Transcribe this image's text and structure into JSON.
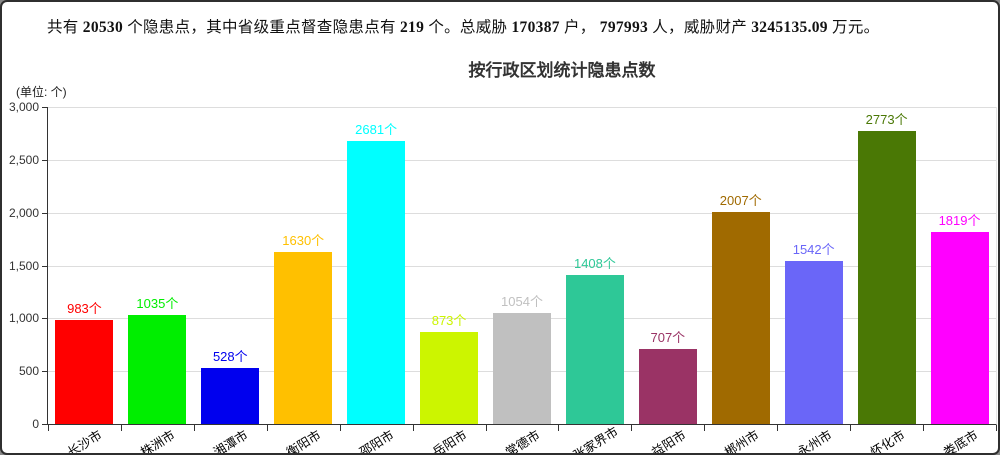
{
  "summary": {
    "segments": [
      {
        "t": "共有 ",
        "b": false
      },
      {
        "t": "20530",
        "b": true
      },
      {
        "t": " 个隐患点，其中省级重点督查隐患点有 ",
        "b": false
      },
      {
        "t": "219",
        "b": true
      },
      {
        "t": " 个。总威胁 ",
        "b": false
      },
      {
        "t": "170387",
        "b": true
      },
      {
        "t": " 户，  ",
        "b": false
      },
      {
        "t": "797993",
        "b": true
      },
      {
        "t": " 人，威胁财产 ",
        "b": false
      },
      {
        "t": "3245135.09",
        "b": true
      },
      {
        "t": " 万元。",
        "b": false
      }
    ]
  },
  "chart_data": {
    "type": "bar",
    "title": "按行政区划统计隐患点数",
    "unit_label": "(单位: 个)",
    "xlabel": "",
    "ylabel": "",
    "categories": [
      "长沙市",
      "株洲市",
      "湘潭市",
      "衡阳市",
      "邵阳市",
      "岳阳市",
      "常德市",
      "张家界市",
      "益阳市",
      "郴州市",
      "永州市",
      "怀化市",
      "娄底市"
    ],
    "values": [
      983,
      1035,
      528,
      1630,
      2681,
      873,
      1054,
      1408,
      707,
      2007,
      1542,
      2773,
      1819
    ],
    "bar_colors": [
      "#ff0000",
      "#00ee00",
      "#0000ee",
      "#ffc000",
      "#00ffff",
      "#ccf500",
      "#c0c0c0",
      "#2ec897",
      "#9a3365",
      "#a06a00",
      "#6a66f8",
      "#4a7805",
      "#ff00ff"
    ],
    "data_label_suffix": "个",
    "ylim": [
      0,
      3000
    ],
    "ytick_step": 500,
    "ytick_labels": [
      "0",
      "500",
      "1,000",
      "1,500",
      "2,000",
      "2,500",
      "3,000"
    ],
    "grid": true,
    "grid_color": "#dddddd",
    "axis_color": "#333333",
    "legend": "none"
  }
}
